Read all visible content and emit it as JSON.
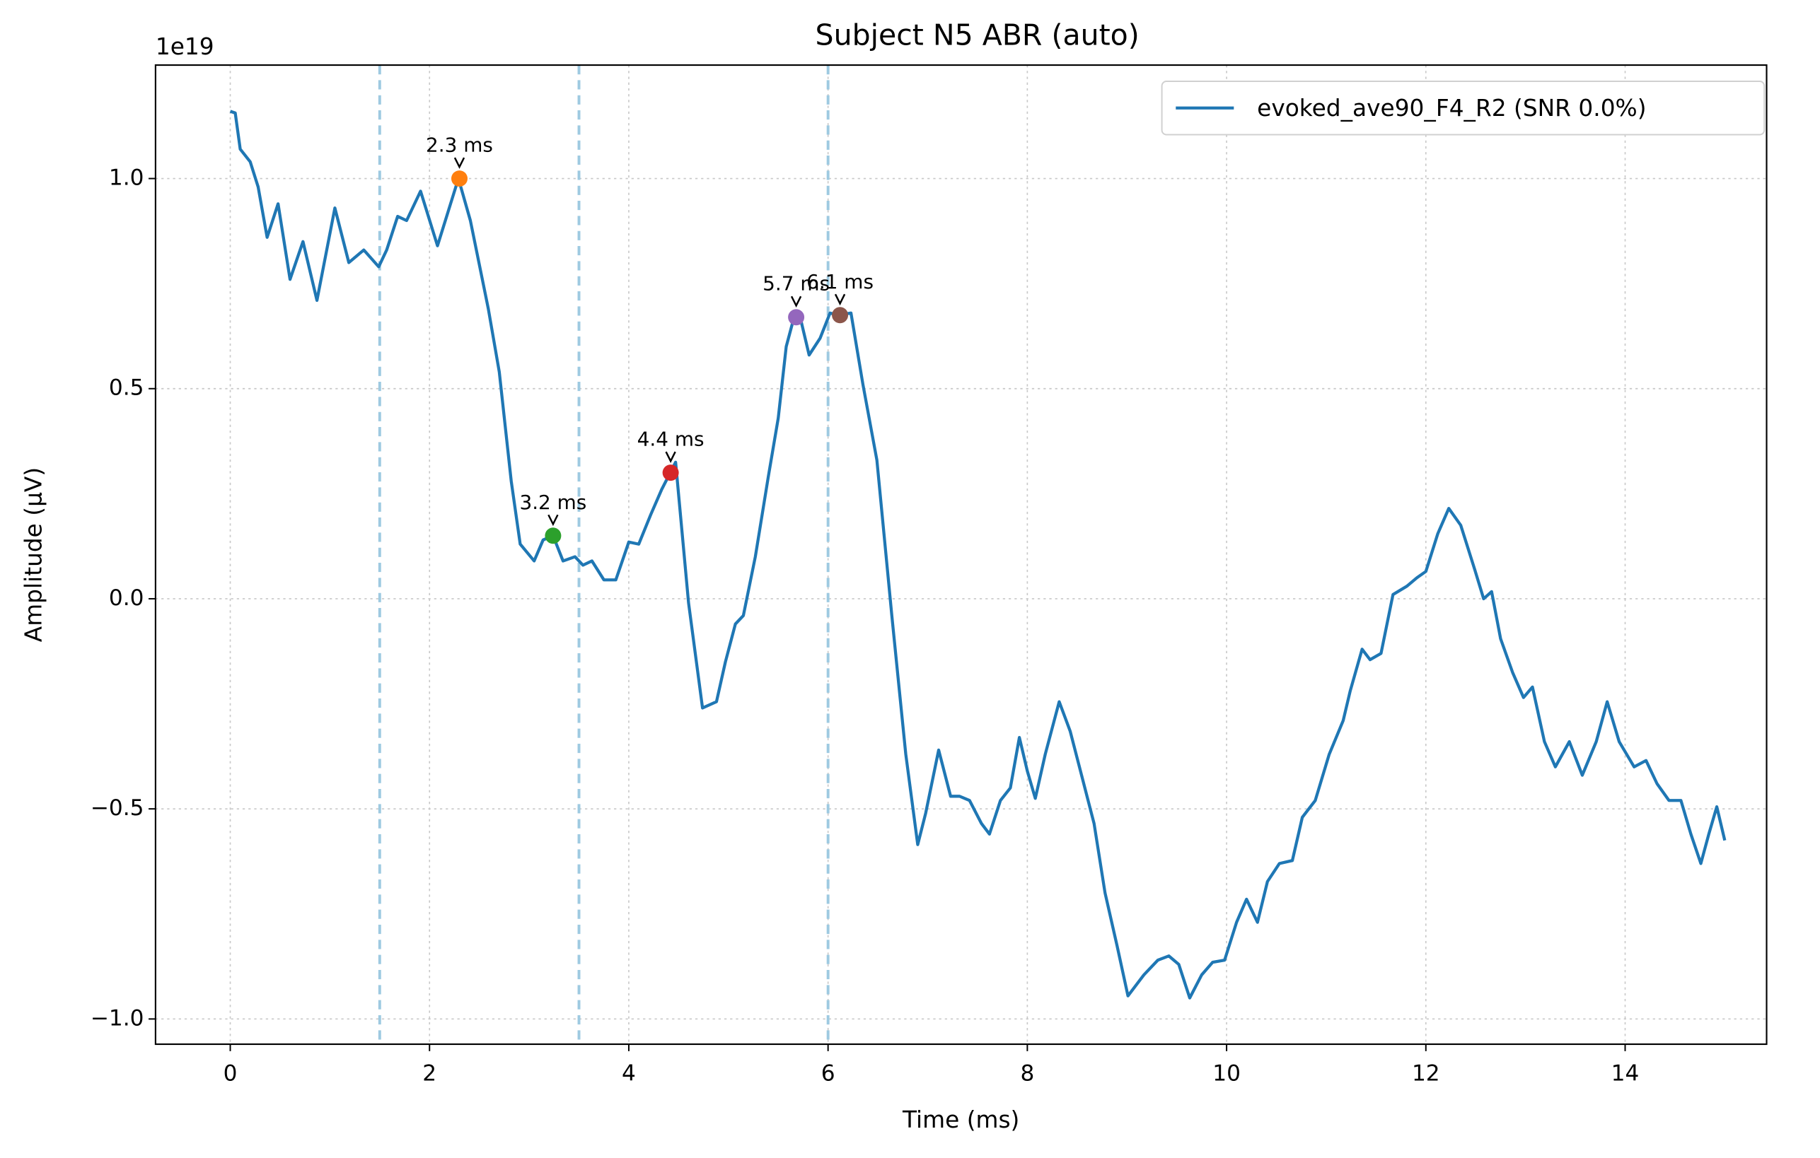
{
  "chart_data": {
    "type": "line",
    "title": "Subject N5 ABR (auto)",
    "x_label": "Time (ms)",
    "y_label": "Amplitude (µV)",
    "y_offset_label": "1e19",
    "xlim": [
      -0.75,
      15.42
    ],
    "ylim": [
      -1.06,
      1.27
    ],
    "xticks": [
      0,
      2,
      4,
      6,
      8,
      10,
      12,
      14
    ],
    "yticks": [
      {
        "value": -1.0,
        "label": "−1.0"
      },
      {
        "value": -0.5,
        "label": "−0.5"
      },
      {
        "value": 0.0,
        "label": "0.0"
      },
      0.5,
      {
        "value": 1.0,
        "label": "1.0"
      }
    ],
    "grid": true,
    "legend_position": "upper-right",
    "vlines": {
      "color": "#9ecae1",
      "x": [
        1.5,
        3.5,
        6.0
      ]
    },
    "series": [
      {
        "name": "evoked_ave90_F4_R2 (SNR 0.0%)",
        "color": "#1f77b4",
        "x": [
          0,
          0.05,
          0.1,
          0.2,
          0.28,
          0.37,
          0.48,
          0.6,
          0.73,
          0.87,
          1.05,
          1.19,
          1.34,
          1.49,
          1.57,
          1.68,
          1.77,
          1.91,
          2.08,
          2.29,
          2.41,
          2.59,
          2.7,
          2.82,
          2.91,
          3.05,
          3.14,
          3.24,
          3.34,
          3.46,
          3.54,
          3.63,
          3.75,
          3.87,
          4.0,
          4.1,
          4.22,
          4.33,
          4.47,
          4.6,
          4.74,
          4.88,
          4.97,
          5.07,
          5.15,
          5.27,
          5.4,
          5.5,
          5.58,
          5.67,
          5.73,
          5.81,
          5.92,
          6.02,
          6.1,
          6.23,
          6.35,
          6.49,
          6.64,
          6.78,
          6.9,
          6.98,
          7.11,
          7.23,
          7.32,
          7.42,
          7.54,
          7.62,
          7.73,
          7.83,
          7.92,
          8.0,
          8.08,
          8.18,
          8.32,
          8.43,
          8.55,
          8.67,
          8.78,
          8.9,
          9.01,
          9.17,
          9.31,
          9.42,
          9.52,
          9.63,
          9.75,
          9.86,
          9.98,
          10.1,
          10.2,
          10.31,
          10.41,
          10.53,
          10.66,
          10.76,
          10.89,
          11.03,
          11.17,
          11.24,
          11.36,
          11.44,
          11.55,
          11.67,
          11.81,
          11.91,
          12.0,
          12.12,
          12.23,
          12.35,
          12.49,
          12.58,
          12.66,
          12.75,
          12.87,
          12.98,
          13.07,
          13.19,
          13.3,
          13.44,
          13.57,
          13.71,
          13.82,
          13.94,
          14.09,
          14.21,
          14.32,
          14.44,
          14.56,
          14.66,
          14.76,
          14.84,
          14.92,
          15.0
        ],
        "values": [
          1.16,
          1.156,
          1.07,
          1.04,
          0.98,
          0.86,
          0.94,
          0.76,
          0.85,
          0.71,
          0.93,
          0.8,
          0.83,
          0.79,
          0.83,
          0.91,
          0.9,
          0.97,
          0.84,
          1.0,
          0.9,
          0.69,
          0.54,
          0.28,
          0.13,
          0.09,
          0.14,
          0.15,
          0.09,
          0.1,
          0.08,
          0.09,
          0.045,
          0.045,
          0.135,
          0.13,
          0.2,
          0.26,
          0.325,
          -0.01,
          -0.26,
          -0.245,
          -0.15,
          -0.06,
          -0.04,
          0.1,
          0.29,
          0.43,
          0.6,
          0.68,
          0.66,
          0.58,
          0.62,
          0.68,
          0.675,
          0.68,
          0.51,
          0.33,
          -0.04,
          -0.37,
          -0.585,
          -0.51,
          -0.36,
          -0.47,
          -0.47,
          -0.48,
          -0.535,
          -0.56,
          -0.48,
          -0.45,
          -0.33,
          -0.41,
          -0.475,
          -0.37,
          -0.245,
          -0.315,
          -0.425,
          -0.535,
          -0.7,
          -0.825,
          -0.945,
          -0.895,
          -0.86,
          -0.85,
          -0.87,
          -0.95,
          -0.895,
          -0.865,
          -0.86,
          -0.77,
          -0.715,
          -0.77,
          -0.673,
          -0.63,
          -0.623,
          -0.52,
          -0.48,
          -0.37,
          -0.29,
          -0.22,
          -0.12,
          -0.145,
          -0.13,
          0.01,
          0.03,
          0.05,
          0.065,
          0.155,
          0.215,
          0.175,
          0.07,
          0.0,
          0.017,
          -0.095,
          -0.175,
          -0.235,
          -0.21,
          -0.34,
          -0.4,
          -0.34,
          -0.42,
          -0.34,
          -0.245,
          -0.34,
          -0.4,
          -0.385,
          -0.44,
          -0.48,
          -0.48,
          -0.56,
          -0.63,
          -0.56,
          -0.495,
          -0.575
        ]
      }
    ],
    "peaks": [
      {
        "label": "2.3 ms",
        "x": 2.3,
        "y": 1.0,
        "color": "#ff7f0e"
      },
      {
        "label": "3.2 ms",
        "x": 3.24,
        "y": 0.15,
        "color": "#2ca02c"
      },
      {
        "label": "4.4 ms",
        "x": 4.42,
        "y": 0.3,
        "color": "#d62728"
      },
      {
        "label": "5.7 ms",
        "x": 5.68,
        "y": 0.67,
        "color": "#9467bd"
      },
      {
        "label": "6.1 ms",
        "x": 6.12,
        "y": 0.675,
        "color": "#8c564b"
      }
    ]
  }
}
